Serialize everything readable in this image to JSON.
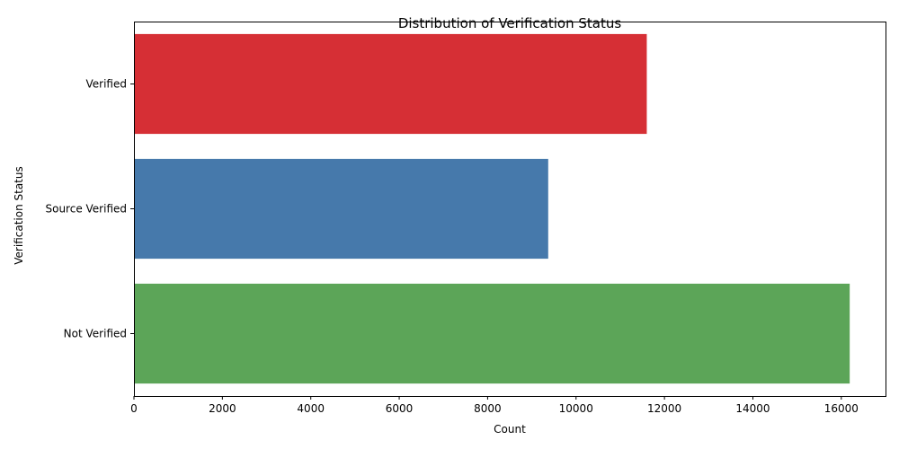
{
  "chart_data": {
    "type": "bar",
    "orientation": "horizontal",
    "title": "Distribution of Verification Status",
    "xlabel": "Count",
    "ylabel": "Verification Status",
    "categories": [
      "Verified",
      "Source Verified",
      "Not Verified"
    ],
    "values": [
      11600,
      9370,
      16190
    ],
    "colors": [
      "#d62f35",
      "#4679ab",
      "#5ca558"
    ],
    "xlim": [
      0,
      17000
    ],
    "xticks": [
      0,
      2000,
      4000,
      6000,
      8000,
      10000,
      12000,
      14000,
      16000
    ],
    "grid": false
  }
}
